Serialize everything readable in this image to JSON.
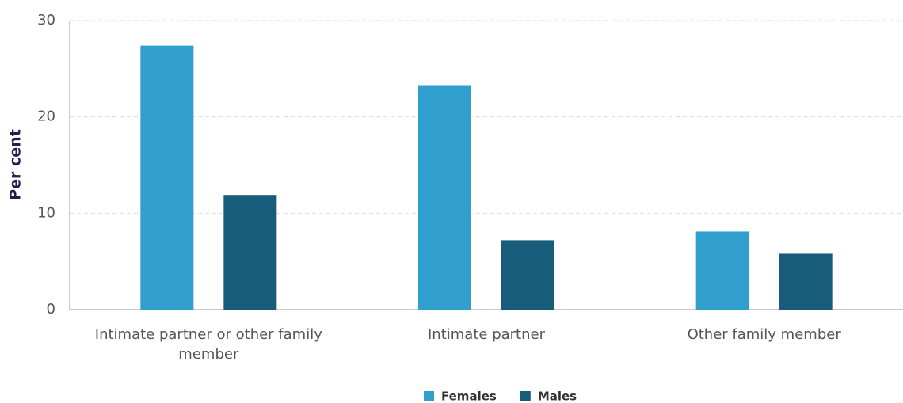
{
  "chart_data": {
    "type": "bar",
    "y_label": "Per cent",
    "categories": [
      "Intimate partner or other family member",
      "Intimate partner",
      "Other family member"
    ],
    "series": [
      {
        "name": "Females",
        "color": "#319fcd",
        "values": [
          27.4,
          23.3,
          8.1
        ]
      },
      {
        "name": "Males",
        "color": "#175c7a",
        "values": [
          11.9,
          7.2,
          5.8
        ]
      }
    ],
    "ylim": [
      0,
      30
    ],
    "yticks": [
      0,
      10,
      20,
      30
    ],
    "grid": true,
    "legend": "bottom"
  }
}
